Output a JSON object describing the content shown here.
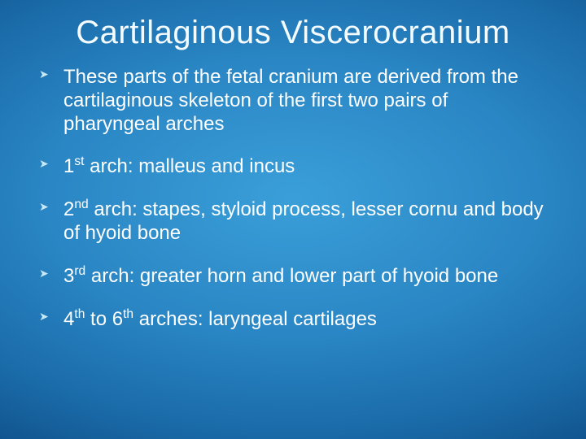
{
  "slide": {
    "title": "Cartilaginous Viscerocranium",
    "title_color": "#f4fbff",
    "background_gradient_colors": [
      "#3a9fd9",
      "#2a86c4",
      "#1a6aa8",
      "#0d4c84",
      "#063768"
    ],
    "text_color": "#ffffff",
    "bullet_marker_color": "#c9e8f7",
    "title_fontsize": 40,
    "body_fontsize": 24,
    "bullets": [
      {
        "text": "These parts of the fetal cranium are derived from the cartilaginous skeleton of the first two pairs of pharyngeal arches"
      },
      {
        "ord_num": "1",
        "ord_suf": "st",
        "after": " arch: malleus and incus"
      },
      {
        "ord_num": "2",
        "ord_suf": "nd",
        "after": " arch: stapes, styloid process, lesser cornu and body of hyoid bone"
      },
      {
        "ord_num": "3",
        "ord_suf": "rd",
        "after": " arch: greater horn and lower part of hyoid bone"
      },
      {
        "ord_num": "4",
        "ord_suf": "th",
        "mid": " to ",
        "ord_num2": "6",
        "ord_suf2": "th",
        "after": " arches: laryngeal cartilages"
      }
    ]
  }
}
